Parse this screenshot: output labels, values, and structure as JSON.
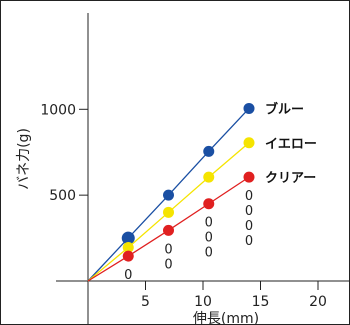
{
  "chart_data": {
    "type": "line",
    "xlabel": "伸長(mm)",
    "ylabel": "バネ力(g)",
    "xlim": [
      0,
      21
    ],
    "ylim": [
      -100,
      1170
    ],
    "x_ticks": [
      5,
      10,
      15,
      20
    ],
    "y_ticks": [
      500,
      1000
    ],
    "series": [
      {
        "name": "ブルー",
        "color": "#1a4fa3",
        "x": [
          0,
          3.5,
          7,
          10.5,
          14
        ],
        "y": [
          0,
          250,
          500,
          755,
          1005
        ]
      },
      {
        "name": "イエロー",
        "color": "#f5e400",
        "x": [
          0,
          3.5,
          7,
          10.5,
          14
        ],
        "y": [
          0,
          195,
          400,
          605,
          805
        ]
      },
      {
        "name": "クリアー",
        "color": "#e02020",
        "x": [
          0,
          3.5,
          7,
          10.5,
          14
        ],
        "y": [
          0,
          145,
          295,
          450,
          605
        ]
      }
    ],
    "point_labels": [
      {
        "x": 3.5,
        "lines": [
          "0"
        ]
      },
      {
        "x": 7,
        "lines": [
          "0",
          "0"
        ]
      },
      {
        "x": 10.5,
        "lines": [
          "0",
          "0",
          "0"
        ]
      },
      {
        "x": 14,
        "lines": [
          "0",
          "0",
          "0",
          "0"
        ]
      }
    ]
  }
}
